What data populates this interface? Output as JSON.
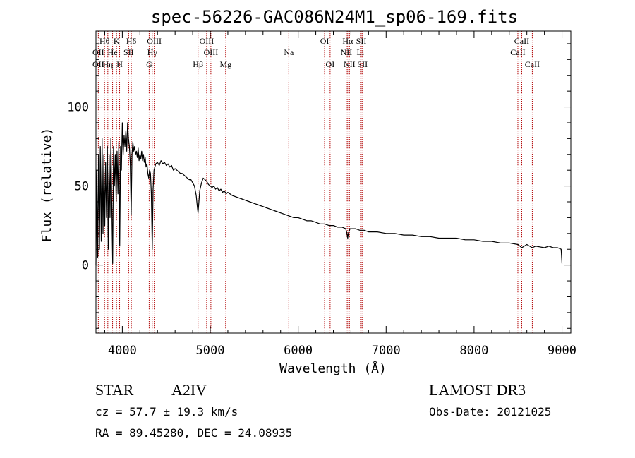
{
  "chart_data": {
    "type": "line",
    "title": "spec-56226-GAC086N24M1_sp06-169.fits",
    "xlabel": "Wavelength (Å)",
    "ylabel": "Flux (relative)",
    "xlim": [
      3700,
      9100
    ],
    "ylim": [
      -43,
      148
    ],
    "xticks": [
      {
        "value": 4000,
        "label": "4000"
      },
      {
        "value": 5000,
        "label": "5000"
      },
      {
        "value": 6000,
        "label": "6000"
      },
      {
        "value": 7000,
        "label": "7000"
      },
      {
        "value": 8000,
        "label": "8000"
      },
      {
        "value": 9000,
        "label": "9000"
      }
    ],
    "yticks": [
      {
        "value": 0,
        "label": "0"
      },
      {
        "value": 50,
        "label": "50"
      },
      {
        "value": 100,
        "label": "100"
      }
    ],
    "series": [
      {
        "name": "flux",
        "points": [
          [
            3700,
            0
          ],
          [
            3710,
            60
          ],
          [
            3720,
            5
          ],
          [
            3730,
            70
          ],
          [
            3740,
            10
          ],
          [
            3750,
            75
          ],
          [
            3760,
            15
          ],
          [
            3770,
            80
          ],
          [
            3780,
            20
          ],
          [
            3790,
            70
          ],
          [
            3800,
            25
          ],
          [
            3810,
            65
          ],
          [
            3820,
            30
          ],
          [
            3830,
            75
          ],
          [
            3840,
            10
          ],
          [
            3850,
            70
          ],
          [
            3860,
            30
          ],
          [
            3870,
            80
          ],
          [
            3880,
            40
          ],
          [
            3890,
            1
          ],
          [
            3900,
            75
          ],
          [
            3910,
            50
          ],
          [
            3920,
            70
          ],
          [
            3930,
            40
          ],
          [
            3940,
            72
          ],
          [
            3950,
            45
          ],
          [
            3960,
            78
          ],
          [
            3970,
            12
          ],
          [
            3980,
            75
          ],
          [
            3990,
            60
          ],
          [
            4000,
            90
          ],
          [
            4010,
            70
          ],
          [
            4020,
            82
          ],
          [
            4030,
            75
          ],
          [
            4040,
            85
          ],
          [
            4050,
            72
          ],
          [
            4060,
            90
          ],
          [
            4070,
            80
          ],
          [
            4080,
            75
          ],
          [
            4090,
            65
          ],
          [
            4100,
            32
          ],
          [
            4110,
            70
          ],
          [
            4120,
            78
          ],
          [
            4130,
            72
          ],
          [
            4140,
            75
          ],
          [
            4150,
            70
          ],
          [
            4160,
            72
          ],
          [
            4170,
            68
          ],
          [
            4180,
            74
          ],
          [
            4190,
            66
          ],
          [
            4200,
            70
          ],
          [
            4210,
            67
          ],
          [
            4220,
            72
          ],
          [
            4230,
            66
          ],
          [
            4240,
            70
          ],
          [
            4250,
            65
          ],
          [
            4260,
            68
          ],
          [
            4270,
            62
          ],
          [
            4280,
            64
          ],
          [
            4290,
            58
          ],
          [
            4300,
            55
          ],
          [
            4310,
            60
          ],
          [
            4320,
            58
          ],
          [
            4330,
            45
          ],
          [
            4340,
            10
          ],
          [
            4350,
            48
          ],
          [
            4360,
            60
          ],
          [
            4370,
            62
          ],
          [
            4380,
            64
          ],
          [
            4400,
            65
          ],
          [
            4420,
            63
          ],
          [
            4440,
            66
          ],
          [
            4460,
            64
          ],
          [
            4480,
            65
          ],
          [
            4500,
            63
          ],
          [
            4520,
            64
          ],
          [
            4540,
            62
          ],
          [
            4560,
            63
          ],
          [
            4580,
            60
          ],
          [
            4600,
            61
          ],
          [
            4620,
            60
          ],
          [
            4640,
            59
          ],
          [
            4660,
            58
          ],
          [
            4680,
            58
          ],
          [
            4700,
            57
          ],
          [
            4720,
            56
          ],
          [
            4740,
            55
          ],
          [
            4760,
            54
          ],
          [
            4780,
            54
          ],
          [
            4800,
            52
          ],
          [
            4820,
            50
          ],
          [
            4840,
            44
          ],
          [
            4855,
            36
          ],
          [
            4861,
            33
          ],
          [
            4868,
            38
          ],
          [
            4880,
            47
          ],
          [
            4900,
            52
          ],
          [
            4920,
            55
          ],
          [
            4940,
            54
          ],
          [
            4960,
            53
          ],
          [
            4980,
            51
          ],
          [
            5000,
            50
          ],
          [
            5020,
            49
          ],
          [
            5040,
            50
          ],
          [
            5060,
            48
          ],
          [
            5080,
            49
          ],
          [
            5100,
            47
          ],
          [
            5120,
            48
          ],
          [
            5140,
            46
          ],
          [
            5160,
            47
          ],
          [
            5180,
            45
          ],
          [
            5200,
            46
          ],
          [
            5250,
            44
          ],
          [
            5300,
            43
          ],
          [
            5350,
            42
          ],
          [
            5400,
            41
          ],
          [
            5450,
            40
          ],
          [
            5500,
            39
          ],
          [
            5550,
            38
          ],
          [
            5600,
            37
          ],
          [
            5650,
            36
          ],
          [
            5700,
            35
          ],
          [
            5750,
            34
          ],
          [
            5800,
            33
          ],
          [
            5850,
            32
          ],
          [
            5900,
            31
          ],
          [
            5950,
            30
          ],
          [
            6000,
            30
          ],
          [
            6050,
            29
          ],
          [
            6100,
            28
          ],
          [
            6150,
            28
          ],
          [
            6200,
            27
          ],
          [
            6250,
            26
          ],
          [
            6300,
            26
          ],
          [
            6350,
            25
          ],
          [
            6400,
            25
          ],
          [
            6450,
            24
          ],
          [
            6500,
            24
          ],
          [
            6540,
            23
          ],
          [
            6555,
            20
          ],
          [
            6563,
            17
          ],
          [
            6570,
            20
          ],
          [
            6590,
            23
          ],
          [
            6650,
            23
          ],
          [
            6700,
            22
          ],
          [
            6750,
            22
          ],
          [
            6800,
            21
          ],
          [
            6900,
            21
          ],
          [
            7000,
            20
          ],
          [
            7100,
            20
          ],
          [
            7200,
            19
          ],
          [
            7300,
            19
          ],
          [
            7400,
            18
          ],
          [
            7500,
            18
          ],
          [
            7600,
            17
          ],
          [
            7700,
            17
          ],
          [
            7800,
            17
          ],
          [
            7900,
            16
          ],
          [
            8000,
            16
          ],
          [
            8100,
            15
          ],
          [
            8200,
            15
          ],
          [
            8300,
            14
          ],
          [
            8400,
            14
          ],
          [
            8500,
            13
          ],
          [
            8542,
            11
          ],
          [
            8600,
            13
          ],
          [
            8662,
            11
          ],
          [
            8700,
            12
          ],
          [
            8800,
            11
          ],
          [
            8850,
            12
          ],
          [
            8900,
            11
          ],
          [
            8950,
            11
          ],
          [
            8990,
            10
          ],
          [
            9000,
            1
          ]
        ]
      }
    ],
    "line_annotations": [
      {
        "label": "Hθ",
        "wavelength": 3798,
        "row": 1
      },
      {
        "label": "K",
        "wavelength": 3934,
        "row": 1
      },
      {
        "label": "Hδ",
        "wavelength": 4102,
        "row": 1
      },
      {
        "label": "OIII",
        "wavelength": 4363,
        "row": 1
      },
      {
        "label": "OIII",
        "wavelength": 4959,
        "row": 1
      },
      {
        "label": "OI",
        "wavelength": 6300,
        "row": 1
      },
      {
        "label": "Hα",
        "wavelength": 6563,
        "row": 1
      },
      {
        "label": "SII",
        "wavelength": 6717,
        "row": 1
      },
      {
        "label": "CaII",
        "wavelength": 8542,
        "row": 1
      },
      {
        "label": "OII",
        "wavelength": 3727,
        "row": 2
      },
      {
        "label": "He",
        "wavelength": 3889,
        "row": 2
      },
      {
        "label": "SII",
        "wavelength": 4072,
        "row": 2
      },
      {
        "label": "Hγ",
        "wavelength": 4340,
        "row": 2
      },
      {
        "label": "OIII",
        "wavelength": 5007,
        "row": 2
      },
      {
        "label": "Na",
        "wavelength": 5893,
        "row": 2
      },
      {
        "label": "NII",
        "wavelength": 6548,
        "row": 2
      },
      {
        "label": "Li",
        "wavelength": 6708,
        "row": 2
      },
      {
        "label": "CaII",
        "wavelength": 8498,
        "row": 2
      },
      {
        "label": "OII",
        "wavelength": 3727,
        "row": 3
      },
      {
        "label": "Hη",
        "wavelength": 3835,
        "row": 3
      },
      {
        "label": "H",
        "wavelength": 3969,
        "row": 3
      },
      {
        "label": "G",
        "wavelength": 4305,
        "row": 3
      },
      {
        "label": "Hβ",
        "wavelength": 4861,
        "row": 3
      },
      {
        "label": "Mg",
        "wavelength": 5175,
        "row": 3
      },
      {
        "label": "OI",
        "wavelength": 6363,
        "row": 3
      },
      {
        "label": "NII",
        "wavelength": 6583,
        "row": 3
      },
      {
        "label": "SII",
        "wavelength": 6731,
        "row": 3
      },
      {
        "label": "CaII",
        "wavelength": 8662,
        "row": 3
      }
    ],
    "line_markers": [
      3727,
      3798,
      3835,
      3889,
      3934,
      3969,
      4072,
      4102,
      4305,
      4340,
      4363,
      4861,
      4959,
      5007,
      5175,
      5893,
      6300,
      6363,
      6548,
      6563,
      6583,
      6708,
      6717,
      6731,
      8498,
      8542,
      8662
    ],
    "colors": {
      "marker": "#b00000",
      "line": "#000000",
      "axis": "#000000"
    }
  },
  "info": {
    "object_class": "STAR",
    "subclass": "A2IV",
    "survey": "LAMOST DR3",
    "redshift": "cz = 57.7 ± 19.3 km/s",
    "obs_date": "Obs-Date: 20121025",
    "coords": "RA =  89.45280, DEC =  24.08935"
  }
}
